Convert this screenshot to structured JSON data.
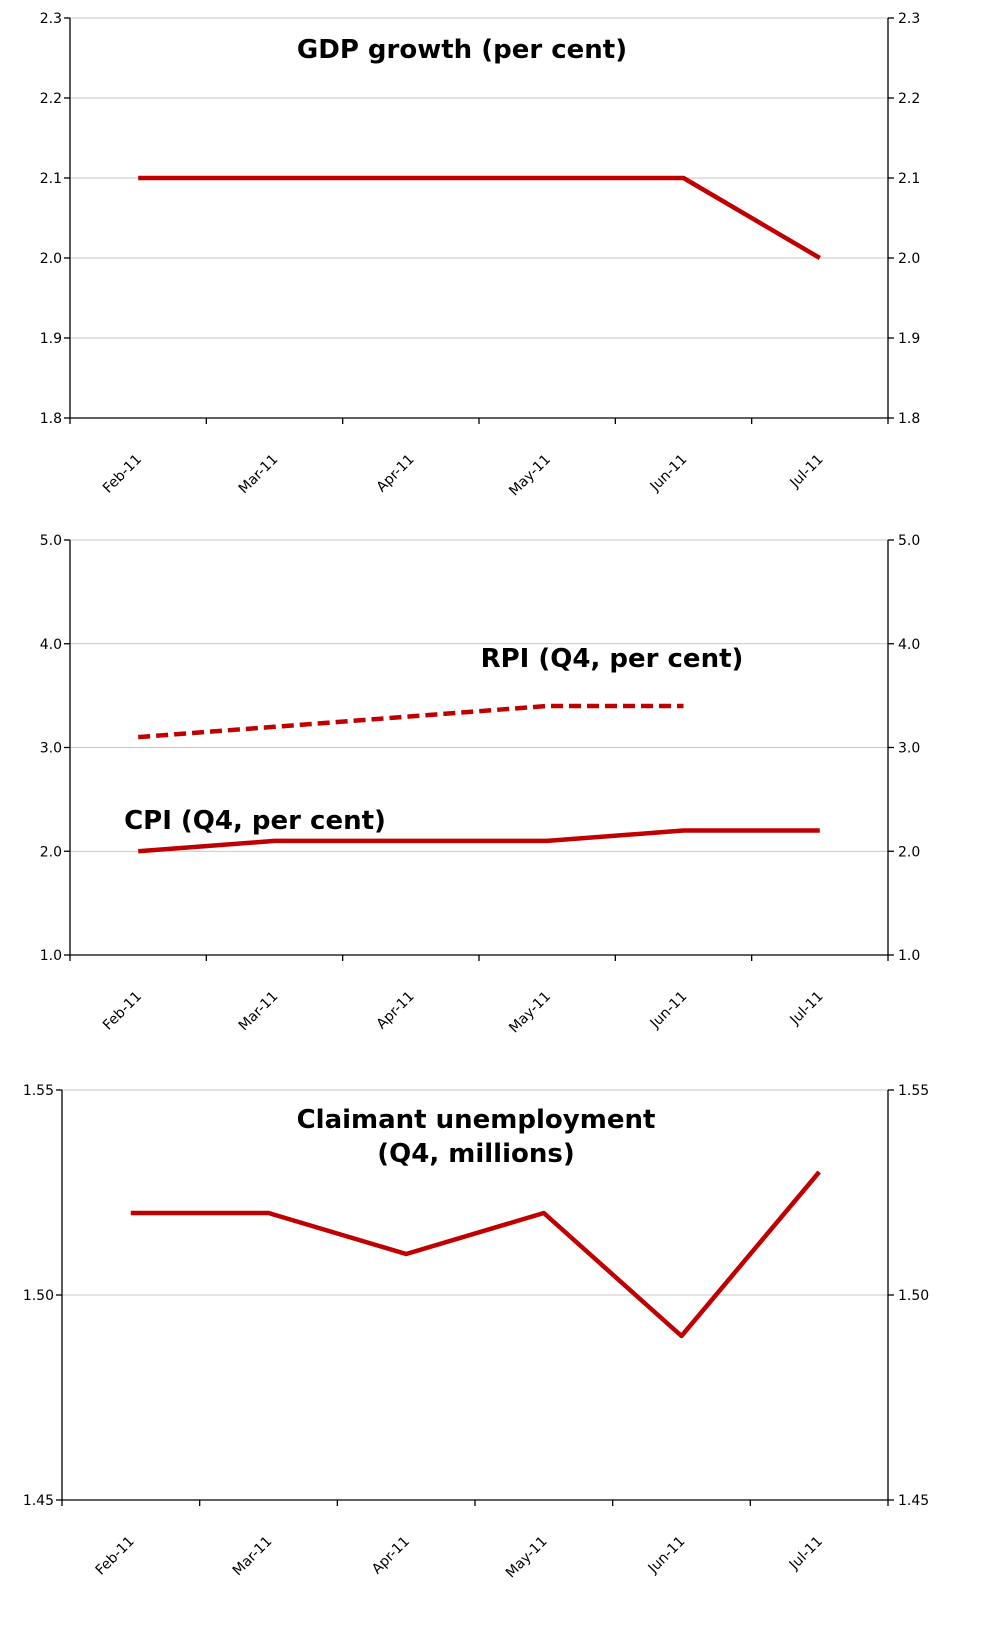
{
  "chart_data": [
    {
      "type": "line",
      "title": "GDP growth (per cent)",
      "categories": [
        "Feb-11",
        "Mar-11",
        "Apr-11",
        "May-11",
        "Jun-11",
        "Jul-11"
      ],
      "series": [
        {
          "values": [
            2.1,
            2.1,
            2.1,
            2.1,
            2.1,
            2.0
          ],
          "color": "#c00000",
          "dash": false
        }
      ],
      "ylim": [
        1.8,
        2.3
      ],
      "yticks": [
        "1.8",
        "1.9",
        "2.0",
        "2.1",
        "2.2",
        "2.3"
      ],
      "grid": true
    },
    {
      "type": "line",
      "title": "",
      "categories": [
        "Feb-11",
        "Mar-11",
        "Apr-11",
        "May-11",
        "Jun-11",
        "Jul-11"
      ],
      "series": [
        {
          "name": "RPI (Q4, per cent)",
          "values": [
            3.1,
            3.2,
            3.3,
            3.4,
            3.4,
            null
          ],
          "color": "#c00000",
          "dash": true
        },
        {
          "name": "CPI (Q4, per cent)",
          "values": [
            2.0,
            2.1,
            2.1,
            2.1,
            2.2,
            2.2
          ],
          "color": "#c00000",
          "dash": false
        }
      ],
      "ylim": [
        1.0,
        5.0
      ],
      "yticks": [
        "1.0",
        "2.0",
        "3.0",
        "4.0",
        "5.0"
      ],
      "grid": true
    },
    {
      "type": "line",
      "title": "Claimant unemployment (Q4, millions)",
      "categories": [
        "Feb-11",
        "Mar-11",
        "Apr-11",
        "May-11",
        "Jun-11",
        "Jul-11"
      ],
      "series": [
        {
          "values": [
            1.52,
            1.52,
            1.51,
            1.52,
            1.49,
            1.53
          ],
          "color": "#c00000",
          "dash": false
        }
      ],
      "ylim": [
        1.45,
        1.55
      ],
      "yticks": [
        "1.45",
        "1.50",
        "1.55"
      ],
      "grid": true
    }
  ]
}
